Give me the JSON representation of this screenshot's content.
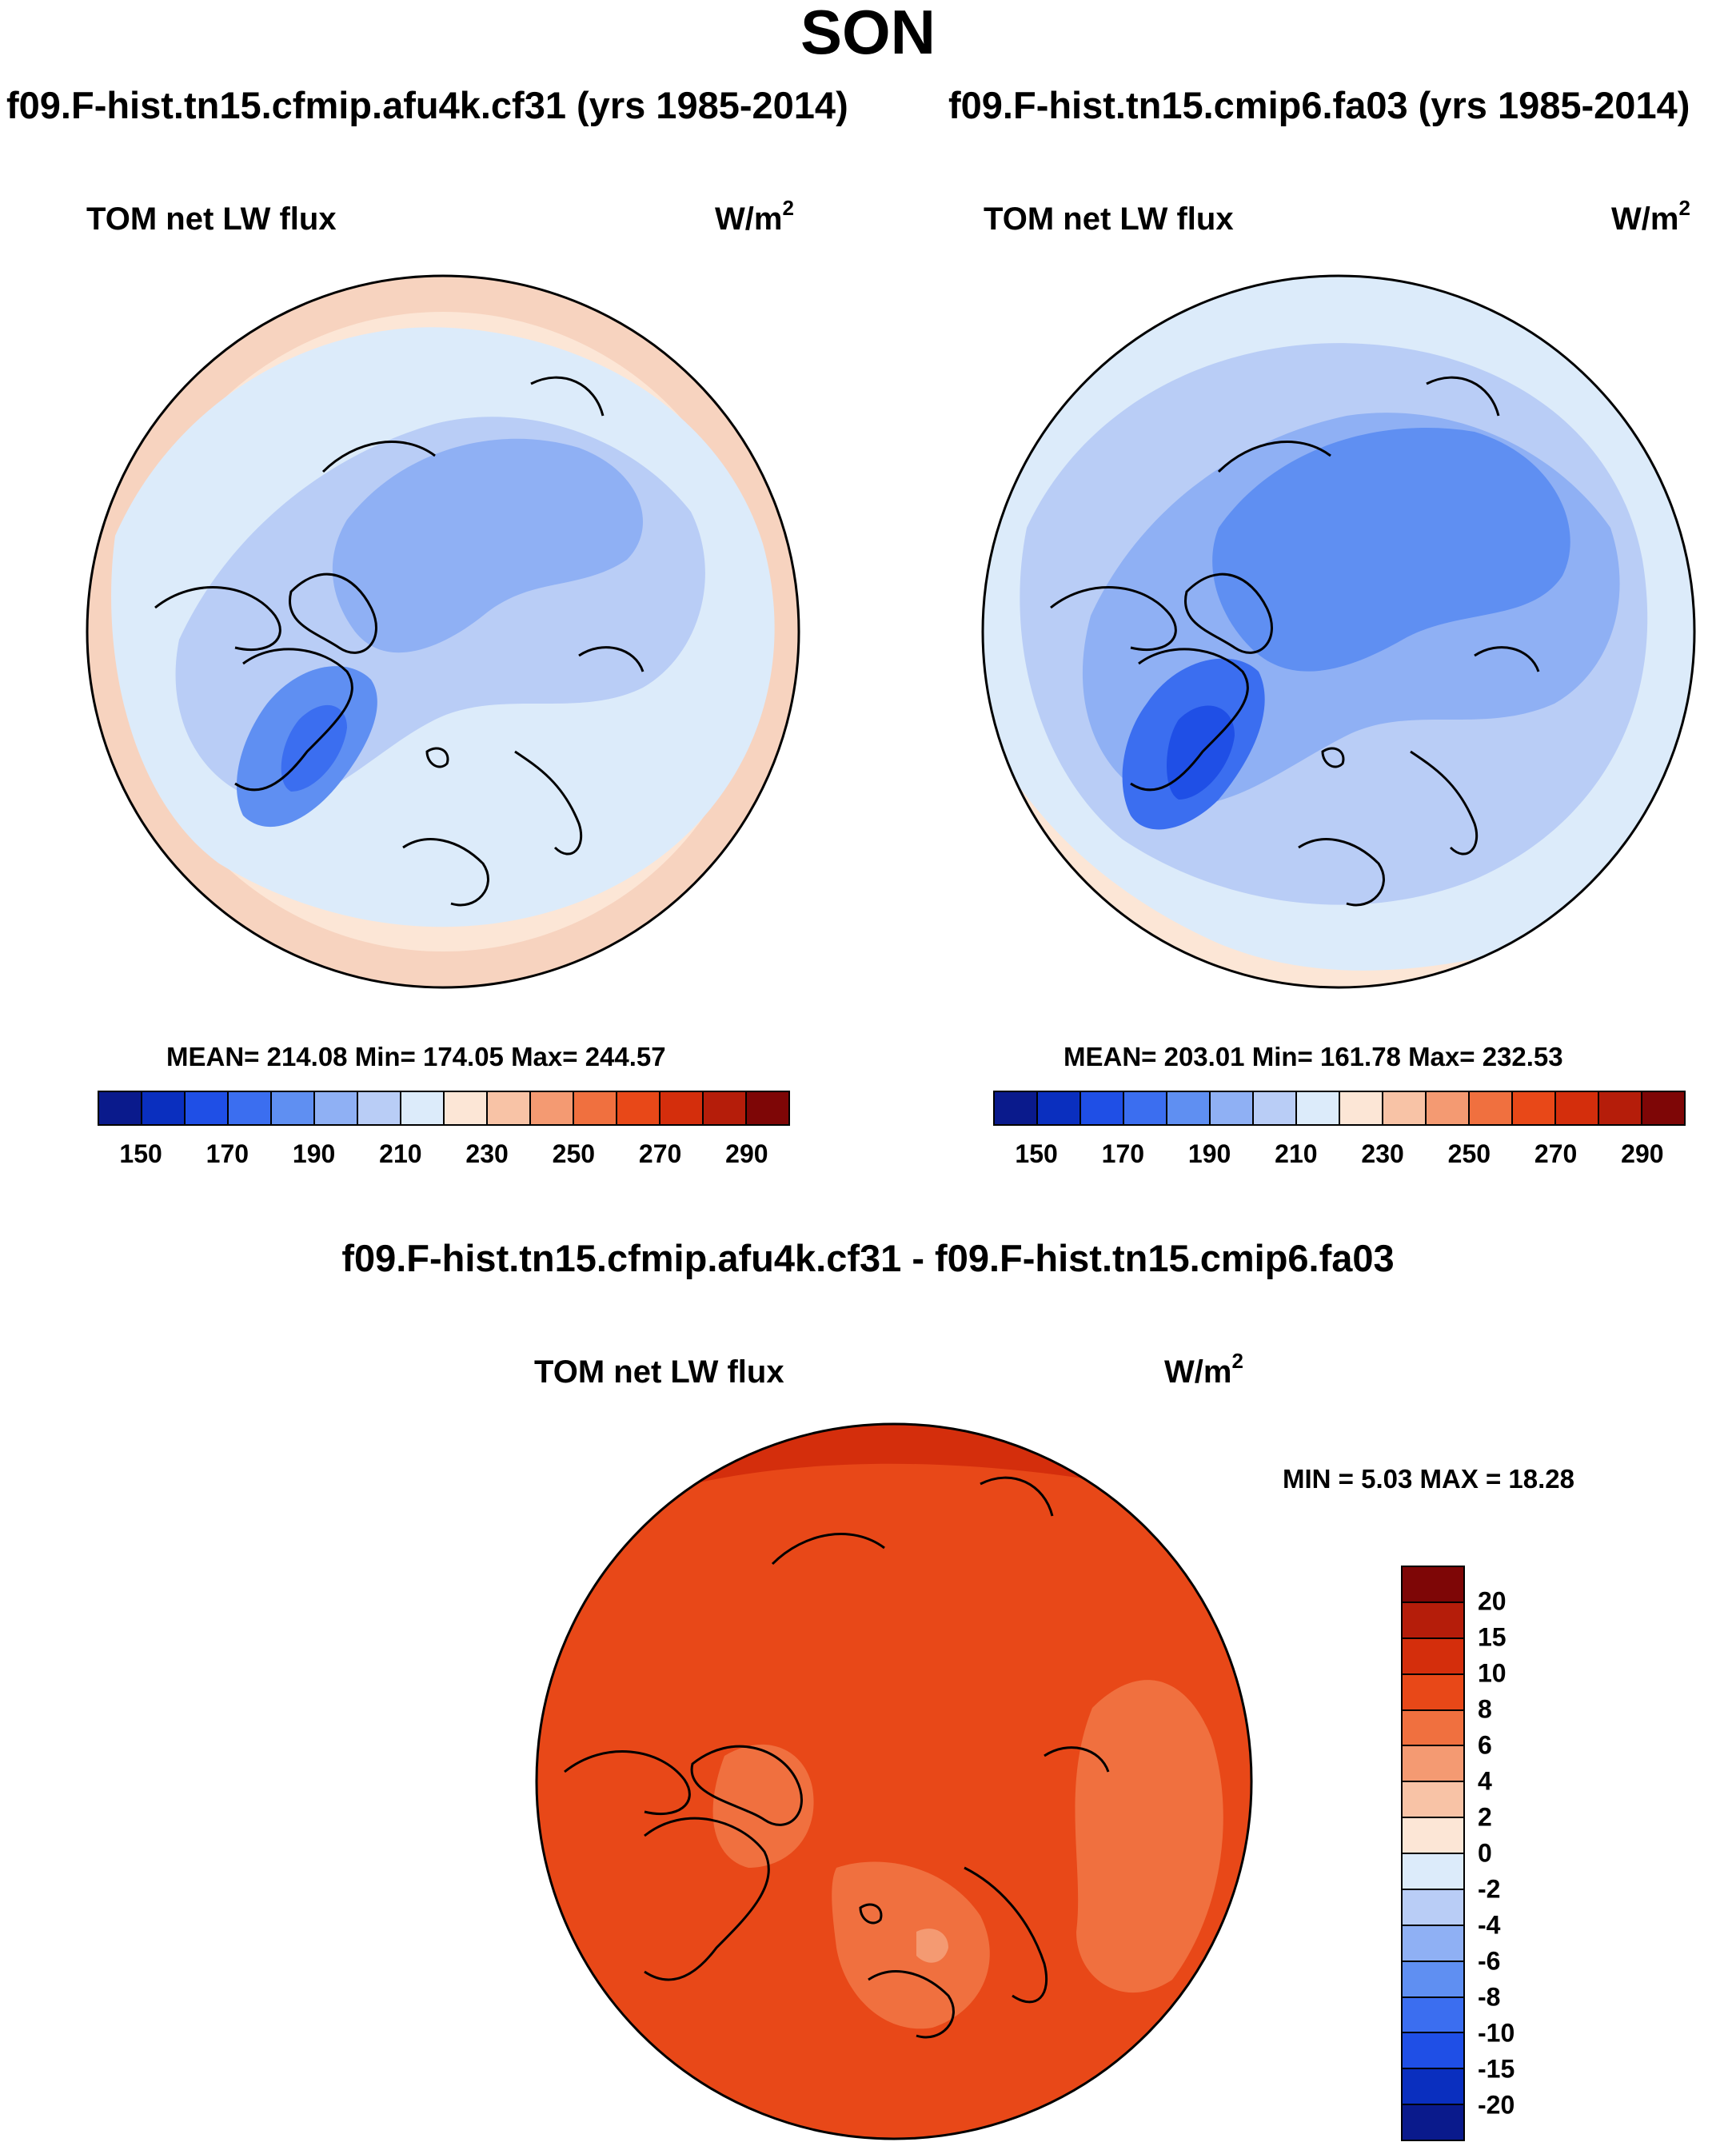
{
  "figure": {
    "season": "SON"
  },
  "panel_left": {
    "case": "f09.F-hist.tn15.cfmip.afu4k.cf31 (yrs 1985-2014)",
    "variable": "TOM net LW flux",
    "units_base": "W/m",
    "units_exp": "2",
    "stats": "MEAN= 214.08  Min= 174.05  Max= 244.57"
  },
  "panel_right": {
    "case": "f09.F-hist.tn15.cmip6.fa03 (yrs 1985-2014)",
    "variable": "TOM net LW flux",
    "units_base": "W/m",
    "units_exp": "2",
    "stats": "MEAN= 203.01  Min= 161.78  Max= 232.53"
  },
  "panel_diff": {
    "case": "f09.F-hist.tn15.cfmip.afu4k.cf31 - f09.F-hist.tn15.cmip6.fa03",
    "variable": "TOM net LW flux",
    "units_base": "W/m",
    "units_exp": "2",
    "stats": "MIN =   5.03 MAX =  18.28"
  },
  "colors": {
    "map_ocean_edge": "#f7d3bf",
    "coastline": "#000000",
    "map_boundary": "#000000"
  },
  "chart_data": [
    {
      "type": "heatmap",
      "title": "TOM net LW flux",
      "subtitle": "f09.F-hist.tn15.cfmip.afu4k.cf31 (yrs 1985-2014)",
      "units": "W/m2",
      "projection": "north polar stereographic",
      "mean": 214.08,
      "min": 174.05,
      "max": 244.57,
      "colorbar_levels": [
        150,
        160,
        170,
        180,
        190,
        200,
        210,
        220,
        230,
        240,
        250,
        260,
        270,
        280,
        290
      ],
      "colorbar_ticks": [
        "150",
        "170",
        "190",
        "210",
        "230",
        "250",
        "270",
        "290"
      ],
      "colorbar_colors": [
        "#0a1a8c",
        "#0a2fbf",
        "#1f4fe6",
        "#3b6ef0",
        "#5f8ff2",
        "#8fb0f4",
        "#b9cdf6",
        "#dcebfa",
        "#fce6d6",
        "#f8c3a6",
        "#f49a72",
        "#f0703f",
        "#e84818",
        "#d42e0c",
        "#b51d0a",
        "#7e0606"
      ]
    },
    {
      "type": "heatmap",
      "title": "TOM net LW flux",
      "subtitle": "f09.F-hist.tn15.cmip6.fa03 (yrs 1985-2014)",
      "units": "W/m2",
      "projection": "north polar stereographic",
      "mean": 203.01,
      "min": 161.78,
      "max": 232.53,
      "colorbar_levels": [
        150,
        160,
        170,
        180,
        190,
        200,
        210,
        220,
        230,
        240,
        250,
        260,
        270,
        280,
        290
      ],
      "colorbar_ticks": [
        "150",
        "170",
        "190",
        "210",
        "230",
        "250",
        "270",
        "290"
      ],
      "colorbar_colors": [
        "#0a1a8c",
        "#0a2fbf",
        "#1f4fe6",
        "#3b6ef0",
        "#5f8ff2",
        "#8fb0f4",
        "#b9cdf6",
        "#dcebfa",
        "#fce6d6",
        "#f8c3a6",
        "#f49a72",
        "#f0703f",
        "#e84818",
        "#d42e0c",
        "#b51d0a",
        "#7e0606"
      ]
    },
    {
      "type": "heatmap",
      "title": "TOM net LW flux",
      "subtitle": "f09.F-hist.tn15.cfmip.afu4k.cf31 - f09.F-hist.tn15.cmip6.fa03",
      "units": "W/m2",
      "projection": "north polar stereographic",
      "min": 5.03,
      "max": 18.28,
      "colorbar_levels": [
        -20,
        -15,
        -10,
        -8,
        -6,
        -4,
        -2,
        0,
        2,
        4,
        6,
        8,
        10,
        15,
        20
      ],
      "colorbar_ticks": [
        "20",
        "15",
        "10",
        "8",
        "6",
        "4",
        "2",
        "0",
        "-2",
        "-4",
        "-6",
        "-8",
        "-10",
        "-15",
        "-20"
      ],
      "colorbar_colors_top_to_bottom": [
        "#7e0606",
        "#b51d0a",
        "#d42e0c",
        "#e84818",
        "#f0703f",
        "#f49a72",
        "#f8c3a6",
        "#fce6d6",
        "#dcebfa",
        "#b9cdf6",
        "#8fb0f4",
        "#5f8ff2",
        "#3b6ef0",
        "#1f4fe6",
        "#0a2fbf",
        "#0a1a8c"
      ]
    }
  ]
}
